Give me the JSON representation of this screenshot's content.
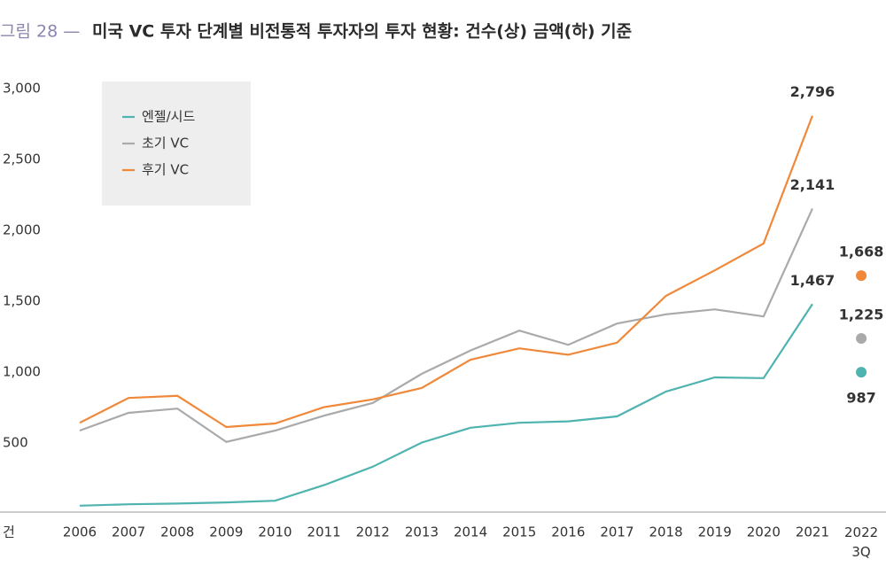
{
  "chart_data": {
    "type": "line",
    "figure_label": "그림 28 —",
    "title": "미국 VC 투자 단계별 비전통적 투자자의 투자 현황: 건수(상) 금액(하) 기준",
    "y_unit": "건",
    "categories": [
      "2006",
      "2007",
      "2008",
      "2009",
      "2010",
      "2011",
      "2012",
      "2013",
      "2014",
      "2015",
      "2016",
      "2017",
      "2018",
      "2019",
      "2020",
      "2021",
      "2022 3Q"
    ],
    "series": [
      {
        "name": "엔젤/시드",
        "color": "#4fb3b0",
        "values": [
          45,
          55,
          60,
          68,
          80,
          190,
          320,
          490,
          595,
          630,
          640,
          675,
          850,
          950,
          945,
          1467,
          987
        ],
        "value_labels": [
          null,
          null,
          null,
          null,
          null,
          null,
          null,
          null,
          null,
          null,
          null,
          null,
          null,
          null,
          null,
          "1,467",
          "987"
        ]
      },
      {
        "name": "초기 VC",
        "color": "#aaaaaa",
        "values": [
          575,
          700,
          730,
          495,
          575,
          680,
          770,
          975,
          1140,
          1280,
          1180,
          1330,
          1395,
          1430,
          1380,
          2141,
          1225
        ],
        "value_labels": [
          null,
          null,
          null,
          null,
          null,
          null,
          null,
          null,
          null,
          null,
          null,
          null,
          null,
          null,
          null,
          "2,141",
          "1,225"
        ]
      },
      {
        "name": "후기 VC",
        "color": "#f0883a",
        "values": [
          630,
          805,
          820,
          600,
          625,
          740,
          795,
          875,
          1075,
          1155,
          1110,
          1195,
          1525,
          1705,
          1895,
          2796,
          1668
        ],
        "value_labels": [
          null,
          null,
          null,
          null,
          null,
          null,
          null,
          null,
          null,
          null,
          null,
          null,
          null,
          null,
          null,
          "2,796",
          "1,668"
        ]
      }
    ],
    "ylim": [
      0,
      3000
    ],
    "yticks": [
      500,
      {
        "value": 1000,
        "label": "1,000"
      },
      {
        "value": 1500,
        "label": "1,500"
      },
      {
        "value": 2000,
        "label": "2,000"
      },
      {
        "value": 2500,
        "label": "2,500"
      },
      {
        "value": 3000,
        "label": "3,000"
      }
    ],
    "legend": "upper left"
  }
}
